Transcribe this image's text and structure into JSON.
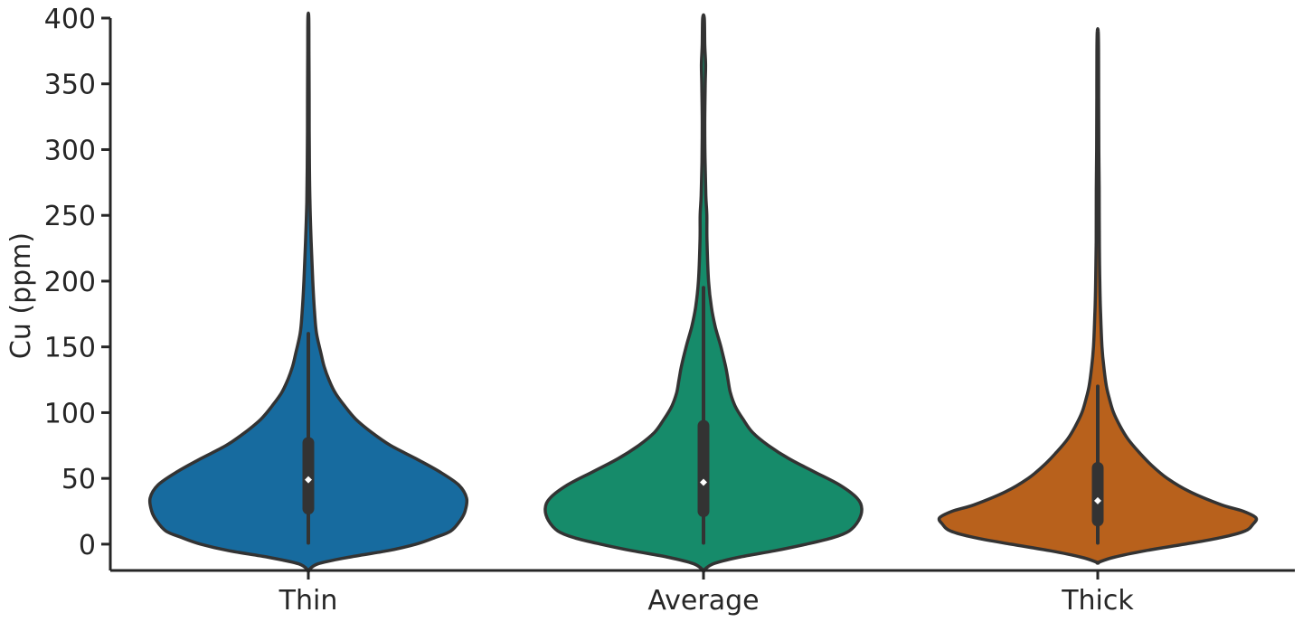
{
  "chart_data": {
    "type": "violin",
    "title": "",
    "xlabel": "",
    "ylabel": "Cu (ppm)",
    "ylim": [
      -20,
      400
    ],
    "yticks": [
      0,
      50,
      100,
      150,
      200,
      250,
      300,
      350,
      400
    ],
    "grid": false,
    "legend": "none",
    "categories": [
      "Thin",
      "Average",
      "Thick"
    ],
    "series": [
      {
        "category": "Thin",
        "color": "#176B9F",
        "median": 49,
        "q1": 27,
        "q3": 77,
        "whisker_low": 1,
        "whisker_high": 160,
        "data_max": 400,
        "density": [
          [
            -20,
            0.0
          ],
          [
            -15,
            0.06
          ],
          [
            -10,
            0.25
          ],
          [
            -5,
            0.5
          ],
          [
            0,
            0.68
          ],
          [
            5,
            0.8
          ],
          [
            10,
            0.9
          ],
          [
            18,
            0.96
          ],
          [
            25,
            0.99
          ],
          [
            35,
            1.0
          ],
          [
            45,
            0.95
          ],
          [
            55,
            0.83
          ],
          [
            65,
            0.68
          ],
          [
            75,
            0.52
          ],
          [
            85,
            0.4
          ],
          [
            95,
            0.3
          ],
          [
            105,
            0.23
          ],
          [
            115,
            0.17
          ],
          [
            125,
            0.13
          ],
          [
            135,
            0.1
          ],
          [
            145,
            0.08
          ],
          [
            160,
            0.052
          ],
          [
            175,
            0.04
          ],
          [
            200,
            0.028
          ],
          [
            230,
            0.018
          ],
          [
            260,
            0.01
          ],
          [
            300,
            0.006
          ],
          [
            340,
            0.005
          ],
          [
            370,
            0.004
          ],
          [
            400,
            0.003
          ]
        ]
      },
      {
        "category": "Average",
        "color": "#168B6A",
        "median": 47,
        "q1": 25,
        "q3": 90,
        "whisker_low": 1,
        "whisker_high": 195,
        "data_max": 400,
        "density": [
          [
            -20,
            0.0
          ],
          [
            -15,
            0.06
          ],
          [
            -10,
            0.22
          ],
          [
            -5,
            0.45
          ],
          [
            0,
            0.65
          ],
          [
            5,
            0.82
          ],
          [
            10,
            0.92
          ],
          [
            18,
            0.98
          ],
          [
            27,
            1.0
          ],
          [
            35,
            0.97
          ],
          [
            45,
            0.86
          ],
          [
            55,
            0.7
          ],
          [
            65,
            0.54
          ],
          [
            75,
            0.41
          ],
          [
            85,
            0.31
          ],
          [
            95,
            0.25
          ],
          [
            105,
            0.2
          ],
          [
            115,
            0.17
          ],
          [
            125,
            0.155
          ],
          [
            135,
            0.14
          ],
          [
            150,
            0.11
          ],
          [
            165,
            0.075
          ],
          [
            180,
            0.05
          ],
          [
            200,
            0.032
          ],
          [
            230,
            0.022
          ],
          [
            250,
            0.021
          ],
          [
            265,
            0.015
          ],
          [
            290,
            0.01
          ],
          [
            320,
            0.008
          ],
          [
            350,
            0.011
          ],
          [
            365,
            0.013
          ],
          [
            380,
            0.008
          ],
          [
            400,
            0.005
          ]
        ]
      },
      {
        "category": "Thick",
        "color": "#B8611C",
        "median": 33,
        "q1": 18,
        "q3": 58,
        "whisker_low": 1,
        "whisker_high": 120,
        "data_max": 390,
        "density": [
          [
            -14,
            0.0
          ],
          [
            -10,
            0.1
          ],
          [
            -5,
            0.3
          ],
          [
            0,
            0.55
          ],
          [
            5,
            0.78
          ],
          [
            10,
            0.93
          ],
          [
            15,
            0.98
          ],
          [
            20,
            1.0
          ],
          [
            25,
            0.92
          ],
          [
            30,
            0.78
          ],
          [
            40,
            0.58
          ],
          [
            50,
            0.44
          ],
          [
            60,
            0.34
          ],
          [
            70,
            0.26
          ],
          [
            80,
            0.19
          ],
          [
            90,
            0.14
          ],
          [
            100,
            0.1
          ],
          [
            110,
            0.075
          ],
          [
            120,
            0.055
          ],
          [
            135,
            0.038
          ],
          [
            150,
            0.027
          ],
          [
            175,
            0.018
          ],
          [
            200,
            0.013
          ],
          [
            230,
            0.01
          ],
          [
            270,
            0.009
          ],
          [
            300,
            0.007
          ],
          [
            340,
            0.006
          ],
          [
            375,
            0.005
          ],
          [
            390,
            0.003
          ]
        ]
      }
    ]
  }
}
